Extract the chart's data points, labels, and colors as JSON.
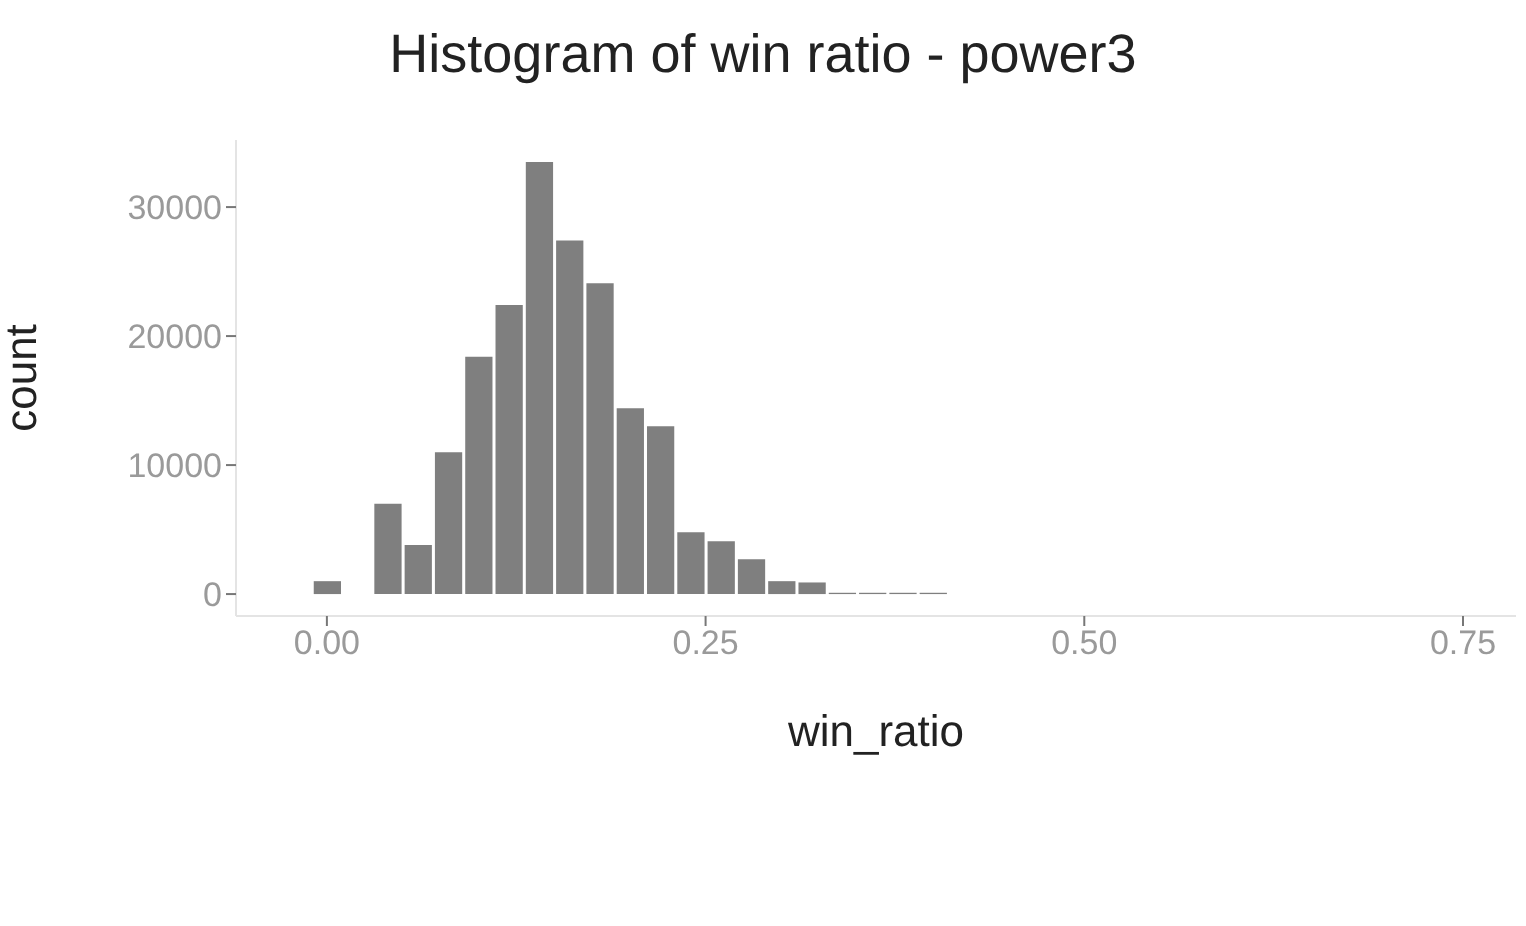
{
  "chart_data": {
    "type": "histogram",
    "title": "Histogram of win ratio - power3",
    "xlabel": "win_ratio",
    "ylabel": "count",
    "color": "#7f7f7f",
    "bins": [
      -0.01,
      0.01,
      0.03,
      0.05,
      0.07,
      0.09,
      0.11,
      0.13,
      0.15,
      0.17,
      0.19,
      0.21,
      0.23,
      0.25,
      0.27,
      0.29,
      0.31,
      0.33,
      0.35,
      0.37,
      0.39,
      0.41
    ],
    "values": [
      1000,
      0,
      7000,
      3800,
      11000,
      18400,
      22400,
      33500,
      27400,
      24100,
      14400,
      13000,
      4800,
      4100,
      2700,
      1000,
      900,
      100,
      100,
      100,
      100
    ],
    "xlim": [
      -0.06,
      0.785
    ],
    "xticks": [
      {
        "value": 0,
        "label": "0.00"
      },
      0.25,
      {
        "value": 0.5,
        "label": "0.50"
      },
      0.75
    ],
    "ylim": [
      -1700,
      35200
    ],
    "yticks": [
      0,
      10000,
      20000,
      30000
    ]
  }
}
